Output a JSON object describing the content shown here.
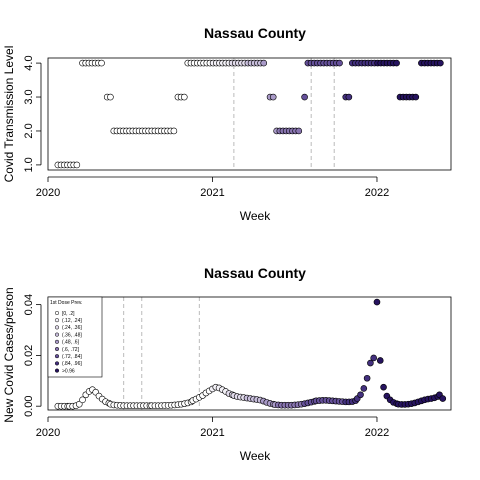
{
  "palette": [
    "#ffffff",
    "#f3f1f7",
    "#e2dcec",
    "#c8bedc",
    "#a99ac8",
    "#8874b0",
    "#65509a",
    "#43307e",
    "#26135f"
  ],
  "axis_color": "#000000",
  "ref_line_color": "#bbbbbb",
  "chart_data": [
    {
      "type": "scatter",
      "title": "Nassau County",
      "xlabel": "Week",
      "ylabel": "Covid Transmission Level",
      "xlim": [
        2020.0,
        2022.45
      ],
      "ylim": [
        0.85,
        4.15
      ],
      "x_ticks": [
        2020,
        2021,
        2022
      ],
      "x_tick_labels": [
        "2020",
        "2021",
        "2022"
      ],
      "y_ticks": [
        1.0,
        2.0,
        3.0,
        4.0
      ],
      "y_tick_labels": [
        "1.0",
        "2.0",
        "3.0",
        "4.0"
      ],
      "ref_lines": [
        2021.13,
        2021.6,
        2021.74
      ],
      "segments": [
        {
          "from": 2020.06,
          "to": 2020.19,
          "y": 1.0
        },
        {
          "from": 2020.21,
          "to": 2020.34,
          "y": 4.0
        },
        {
          "from": 2020.36,
          "to": 2020.38,
          "y": 3.0
        },
        {
          "from": 2020.4,
          "to": 2020.77,
          "y": 2.0
        },
        {
          "from": 2020.79,
          "to": 2020.83,
          "y": 3.0
        },
        {
          "from": 2020.85,
          "to": 2021.33,
          "y": 4.0
        },
        {
          "from": 2021.35,
          "to": 2021.37,
          "y": 3.0
        },
        {
          "from": 2021.39,
          "to": 2021.54,
          "y": 2.0
        },
        {
          "from": 2021.56,
          "to": 2021.56,
          "y": 3.0
        },
        {
          "from": 2021.58,
          "to": 2021.79,
          "y": 4.0
        },
        {
          "from": 2021.81,
          "to": 2021.83,
          "y": 3.0
        },
        {
          "from": 2021.85,
          "to": 2022.12,
          "y": 4.0
        },
        {
          "from": 2022.14,
          "to": 2022.25,
          "y": 3.0
        },
        {
          "from": 2022.27,
          "to": 2022.39,
          "y": 4.0
        }
      ]
    },
    {
      "type": "scatter",
      "title": "Nassau County",
      "xlabel": "Week",
      "ylabel": "New Covid Cases/person",
      "xlim": [
        2020.0,
        2022.45
      ],
      "ylim": [
        -0.0015,
        0.043
      ],
      "x_ticks": [
        2020,
        2021,
        2022
      ],
      "x_tick_labels": [
        "2020",
        "2021",
        "2022"
      ],
      "y_ticks": [
        0.0,
        0.02,
        0.04
      ],
      "y_tick_labels": [
        "0.00",
        "0.02",
        "0.04"
      ],
      "ref_lines": [
        2020.46,
        2020.57,
        2020.92
      ],
      "legend": {
        "position": "top-left",
        "title": "1st Dose Prev.",
        "labels": [
          "[0, .2]",
          "(.12, .24]",
          "(.24, .36]",
          "(.36, .48]",
          "(.48, .6]",
          "(.6, .72]",
          "(.72, .84]",
          "(.84, .96]",
          ">0.96"
        ]
      },
      "points": [
        [
          2020.06,
          0.0
        ],
        [
          2020.08,
          0.0
        ],
        [
          2020.1,
          0.0
        ],
        [
          2020.12,
          0.0
        ],
        [
          2020.13,
          0.0
        ],
        [
          2020.15,
          0.0
        ],
        [
          2020.17,
          0.0002
        ],
        [
          2020.19,
          0.0008
        ],
        [
          2020.21,
          0.0025
        ],
        [
          2020.23,
          0.0045
        ],
        [
          2020.25,
          0.0058
        ],
        [
          2020.27,
          0.0065
        ],
        [
          2020.29,
          0.0055
        ],
        [
          2020.31,
          0.004
        ],
        [
          2020.33,
          0.0028
        ],
        [
          2020.35,
          0.0018
        ],
        [
          2020.37,
          0.0012
        ],
        [
          2020.38,
          0.0008
        ],
        [
          2020.4,
          0.0005
        ],
        [
          2020.42,
          0.0004
        ],
        [
          2020.44,
          0.0003
        ],
        [
          2020.46,
          0.0002
        ],
        [
          2020.48,
          0.0002
        ],
        [
          2020.5,
          0.0002
        ],
        [
          2020.52,
          0.0002
        ],
        [
          2020.54,
          0.0002
        ],
        [
          2020.56,
          0.0002
        ],
        [
          2020.58,
          0.0002
        ],
        [
          2020.6,
          0.0002
        ],
        [
          2020.62,
          0.0002
        ],
        [
          2020.63,
          0.0002
        ],
        [
          2020.65,
          0.0002
        ],
        [
          2020.67,
          0.0002
        ],
        [
          2020.69,
          0.0002
        ],
        [
          2020.71,
          0.0003
        ],
        [
          2020.73,
          0.0003
        ],
        [
          2020.75,
          0.0004
        ],
        [
          2020.77,
          0.0005
        ],
        [
          2020.79,
          0.0006
        ],
        [
          2020.81,
          0.0008
        ],
        [
          2020.83,
          0.001
        ],
        [
          2020.85,
          0.0013
        ],
        [
          2020.87,
          0.0017
        ],
        [
          2020.88,
          0.0022
        ],
        [
          2020.9,
          0.0028
        ],
        [
          2020.92,
          0.0035
        ],
        [
          2020.94,
          0.0042
        ],
        [
          2020.96,
          0.0052
        ],
        [
          2020.98,
          0.006
        ],
        [
          2021.0,
          0.0068
        ],
        [
          2021.02,
          0.0075
        ],
        [
          2021.04,
          0.0072
        ],
        [
          2021.06,
          0.0065
        ],
        [
          2021.08,
          0.0058
        ],
        [
          2021.1,
          0.005
        ],
        [
          2021.12,
          0.0045
        ],
        [
          2021.13,
          0.0042
        ],
        [
          2021.15,
          0.0038
        ],
        [
          2021.17,
          0.0036
        ],
        [
          2021.19,
          0.0034
        ],
        [
          2021.21,
          0.0032
        ],
        [
          2021.23,
          0.003
        ],
        [
          2021.25,
          0.0028
        ],
        [
          2021.27,
          0.0026
        ],
        [
          2021.29,
          0.0024
        ],
        [
          2021.31,
          0.002
        ],
        [
          2021.33,
          0.0015
        ],
        [
          2021.35,
          0.0011
        ],
        [
          2021.37,
          0.0008
        ],
        [
          2021.38,
          0.0006
        ],
        [
          2021.4,
          0.0005
        ],
        [
          2021.42,
          0.0004
        ],
        [
          2021.44,
          0.0004
        ],
        [
          2021.46,
          0.0004
        ],
        [
          2021.48,
          0.0004
        ],
        [
          2021.5,
          0.0005
        ],
        [
          2021.52,
          0.0006
        ],
        [
          2021.54,
          0.0008
        ],
        [
          2021.56,
          0.001
        ],
        [
          2021.58,
          0.0013
        ],
        [
          2021.6,
          0.0016
        ],
        [
          2021.62,
          0.0019
        ],
        [
          2021.63,
          0.0021
        ],
        [
          2021.65,
          0.0022
        ],
        [
          2021.67,
          0.0023
        ],
        [
          2021.69,
          0.0023
        ],
        [
          2021.71,
          0.0022
        ],
        [
          2021.73,
          0.0021
        ],
        [
          2021.75,
          0.002
        ],
        [
          2021.77,
          0.0019
        ],
        [
          2021.79,
          0.0018
        ],
        [
          2021.81,
          0.0017
        ],
        [
          2021.83,
          0.0017
        ],
        [
          2021.85,
          0.0018
        ],
        [
          2021.87,
          0.0022
        ],
        [
          2021.88,
          0.003
        ],
        [
          2021.9,
          0.0045
        ],
        [
          2021.92,
          0.007
        ],
        [
          2021.94,
          0.011
        ],
        [
          2021.96,
          0.017
        ],
        [
          2021.98,
          0.019
        ],
        [
          2022.0,
          0.041
        ],
        [
          2022.02,
          0.018
        ],
        [
          2022.04,
          0.0075
        ],
        [
          2022.06,
          0.004
        ],
        [
          2022.08,
          0.0025
        ],
        [
          2022.1,
          0.0015
        ],
        [
          2022.12,
          0.001
        ],
        [
          2022.13,
          0.0008
        ],
        [
          2022.15,
          0.0007
        ],
        [
          2022.17,
          0.0007
        ],
        [
          2022.19,
          0.0008
        ],
        [
          2022.21,
          0.001
        ],
        [
          2022.23,
          0.0013
        ],
        [
          2022.25,
          0.0017
        ],
        [
          2022.27,
          0.0021
        ],
        [
          2022.29,
          0.0025
        ],
        [
          2022.31,
          0.0028
        ],
        [
          2022.33,
          0.003
        ],
        [
          2022.35,
          0.0033
        ],
        [
          2022.37,
          0.0038
        ],
        [
          2022.38,
          0.0045
        ],
        [
          2022.4,
          0.003
        ]
      ]
    }
  ]
}
